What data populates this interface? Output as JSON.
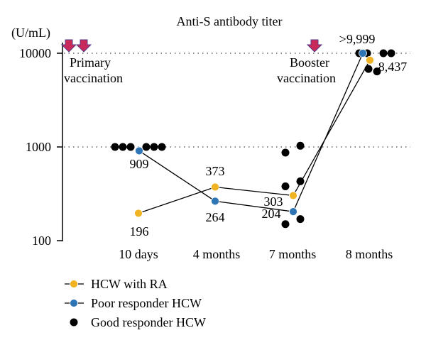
{
  "chart_data": {
    "type": "scatter",
    "title": "Anti-S antibody titer",
    "ylabel": "(U/mL)",
    "yscale": "log",
    "ylim": [
      100,
      10000
    ],
    "yticks": [
      {
        "value": 100,
        "label": "100"
      },
      {
        "value": 1000,
        "label": "1000"
      },
      {
        "value": 10000,
        "label": "10000"
      }
    ],
    "categories": [
      "10 days",
      "4 months",
      "7 months",
      "8 months"
    ],
    "gridlines": "dotted at 1000 and 10000",
    "annotations": [
      {
        "text_lines": [
          "Primary",
          "vaccination"
        ],
        "arrows": 2
      },
      {
        "text_lines": [
          "Booster",
          "vaccination"
        ],
        "arrows": 1
      }
    ],
    "colors": {
      "ra": "#f0b323",
      "poor": "#2e75b6",
      "good": "#000000",
      "arrow": "#c8285a",
      "arrow_outline": "#5a3c8c"
    },
    "series": [
      {
        "name": "HCW with RA",
        "points": [
          {
            "category": "10 days",
            "y": 196,
            "label": "196"
          },
          {
            "category": "4 months",
            "y": 373,
            "label": "373"
          },
          {
            "category": "7 months",
            "y": 303,
            "label": "303"
          },
          {
            "category": "8 months",
            "y": 8437,
            "label": "8,437"
          }
        ]
      },
      {
        "name": "Poor responder HCW",
        "points": [
          {
            "category": "10 days",
            "y": 909,
            "label": "909"
          },
          {
            "category": "4 months",
            "y": 264,
            "label": "264"
          },
          {
            "category": "7 months",
            "y": 204,
            "label": "204"
          },
          {
            "category": "8 months",
            "y": 9999,
            "label": ">9,999"
          }
        ]
      },
      {
        "name": "Good responder HCW",
        "points": [
          {
            "category": "10 days",
            "y": 1000
          },
          {
            "category": "10 days",
            "y": 1000
          },
          {
            "category": "10 days",
            "y": 1000
          },
          {
            "category": "10 days",
            "y": 1000
          },
          {
            "category": "10 days",
            "y": 1000
          },
          {
            "category": "10 days",
            "y": 1000
          },
          {
            "category": "7 months",
            "y": 1030
          },
          {
            "category": "7 months",
            "y": 870
          },
          {
            "category": "7 months",
            "y": 430
          },
          {
            "category": "7 months",
            "y": 380
          },
          {
            "category": "7 months",
            "y": 170
          },
          {
            "category": "7 months",
            "y": 150
          },
          {
            "category": "8 months",
            "y": 10000
          },
          {
            "category": "8 months",
            "y": 10000
          },
          {
            "category": "8 months",
            "y": 10000
          },
          {
            "category": "8 months",
            "y": 10000
          },
          {
            "category": "8 months",
            "y": 6800
          },
          {
            "category": "8 months",
            "y": 6400
          }
        ]
      }
    ]
  }
}
